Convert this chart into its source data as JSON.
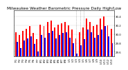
{
  "title": "Milwaukee Weather Barometric Pressure Daily High/Low",
  "high_color": "#ff0000",
  "low_color": "#0000ff",
  "background_color": "#ffffff",
  "highs": [
    30.05,
    29.98,
    30.08,
    30.12,
    30.18,
    30.02,
    29.88,
    30.22,
    30.18,
    30.28,
    30.31,
    30.15,
    30.22,
    30.25,
    30.28,
    30.2,
    30.1,
    29.9,
    30.05,
    30.15,
    30.35,
    30.28,
    30.18,
    30.22,
    30.35,
    30.4,
    30.2,
    30.12
  ],
  "lows": [
    29.82,
    29.68,
    29.85,
    29.9,
    29.95,
    29.78,
    29.6,
    29.98,
    29.92,
    30.02,
    30.08,
    29.9,
    29.98,
    30.02,
    30.05,
    29.92,
    29.8,
    29.55,
    29.75,
    29.88,
    30.1,
    30.05,
    29.92,
    29.98,
    30.1,
    30.18,
    29.95,
    29.8
  ],
  "dashed_lines": [
    17,
    18,
    19
  ],
  "ylim_min": 29.5,
  "ylim_max": 30.55,
  "yticks": [
    29.6,
    29.8,
    30.0,
    30.2,
    30.4
  ],
  "ytick_labels": [
    "29.6",
    "29.8",
    "30.0",
    "30.2",
    "30.4"
  ],
  "bar_width": 0.38,
  "title_fontsize": 4.2,
  "tick_fontsize": 2.8,
  "x_labels": [
    "7/1",
    "7/2",
    "7/3",
    "7/4",
    "7/5",
    "7/6",
    "7/7",
    "8/1",
    "8/2",
    "8/3",
    "8/4",
    "8/5",
    "8/6",
    "8/7",
    "8/8",
    "L/1",
    "L/2",
    "L/3",
    "L/4",
    "L/5",
    "L/6",
    "L/7",
    "L/8",
    "L/9",
    "L/10",
    "L/11",
    "L/12",
    "L/13"
  ]
}
